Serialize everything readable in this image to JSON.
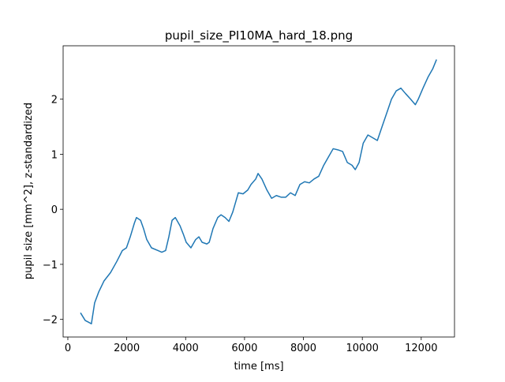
{
  "chart_data": {
    "type": "line",
    "title": "pupil_size_PI10MA_hard_18.png",
    "x_label": "time [ms]",
    "y_label": "pupil size [mm^2], z-standardized",
    "color": "#1f77b4",
    "xlim": [
      -160,
      13130
    ],
    "ylim": [
      -2.32,
      2.97
    ],
    "xticks": [
      0,
      2000,
      4000,
      6000,
      8000,
      10000,
      12000
    ],
    "yticks": [
      {
        "value": -2,
        "label": "−2"
      },
      {
        "value": -1,
        "label": "−1"
      },
      0,
      1,
      2
    ],
    "x": [
      430,
      590,
      700,
      800,
      910,
      1050,
      1230,
      1450,
      1660,
      1850,
      1990,
      2120,
      2260,
      2330,
      2470,
      2570,
      2680,
      2840,
      3060,
      3190,
      3320,
      3430,
      3540,
      3650,
      3810,
      3920,
      4020,
      4180,
      4340,
      4450,
      4560,
      4720,
      4800,
      4930,
      5090,
      5200,
      5340,
      5470,
      5600,
      5790,
      5950,
      6110,
      6220,
      6380,
      6460,
      6590,
      6760,
      6920,
      7080,
      7240,
      7400,
      7560,
      7720,
      7880,
      8040,
      8200,
      8360,
      8520,
      8690,
      8850,
      9010,
      9170,
      9330,
      9490,
      9650,
      9760,
      9890,
      10030,
      10190,
      10350,
      10510,
      10670,
      10830,
      10990,
      11150,
      11310,
      11470,
      11640,
      11800,
      11900,
      12060,
      12230,
      12390,
      12520
    ],
    "values": [
      -1.88,
      -2.02,
      -2.05,
      -2.08,
      -1.7,
      -1.5,
      -1.3,
      -1.15,
      -0.95,
      -0.75,
      -0.7,
      -0.5,
      -0.25,
      -0.15,
      -0.2,
      -0.35,
      -0.55,
      -0.7,
      -0.75,
      -0.78,
      -0.75,
      -0.5,
      -0.2,
      -0.15,
      -0.3,
      -0.45,
      -0.6,
      -0.7,
      -0.55,
      -0.5,
      -0.6,
      -0.63,
      -0.6,
      -0.35,
      -0.15,
      -0.1,
      -0.15,
      -0.22,
      -0.05,
      0.3,
      0.28,
      0.35,
      0.45,
      0.55,
      0.65,
      0.55,
      0.35,
      0.2,
      0.25,
      0.22,
      0.22,
      0.3,
      0.25,
      0.45,
      0.5,
      0.48,
      0.55,
      0.6,
      0.8,
      0.95,
      1.1,
      1.08,
      1.05,
      0.85,
      0.8,
      0.72,
      0.85,
      1.2,
      1.35,
      1.3,
      1.25,
      1.5,
      1.75,
      2.0,
      2.15,
      2.2,
      2.1,
      2.0,
      1.9,
      2.0,
      2.2,
      2.4,
      2.55,
      2.72
    ]
  }
}
